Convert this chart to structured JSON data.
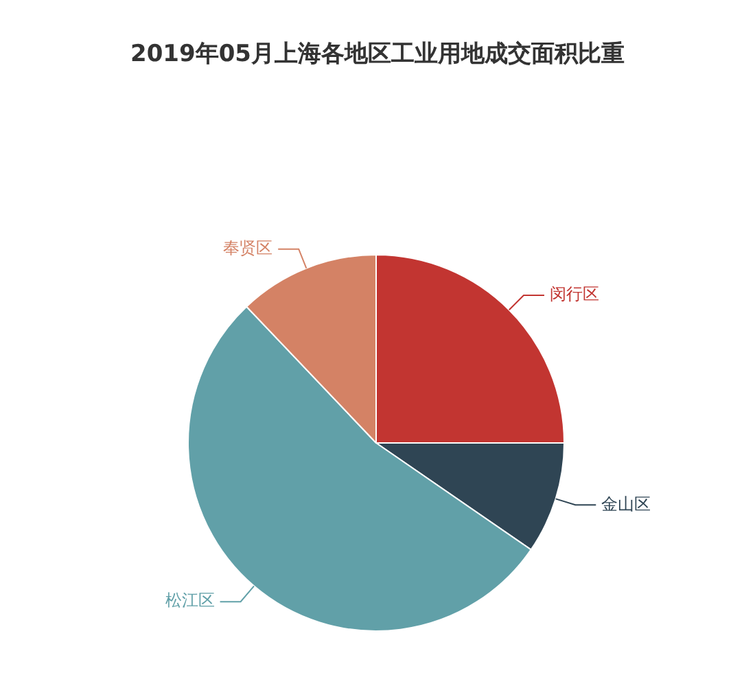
{
  "chart_data": {
    "type": "pie",
    "title": "2019年05月上海各地区工业用地成交面积比重",
    "categories": [
      "闵行区",
      "金山区",
      "松江区",
      "奉贤区"
    ],
    "values": [
      25,
      9.6,
      53.3,
      12.1
    ],
    "colors": [
      "#c23531",
      "#2f4554",
      "#61a0a8",
      "#d48265"
    ],
    "legend": false
  }
}
